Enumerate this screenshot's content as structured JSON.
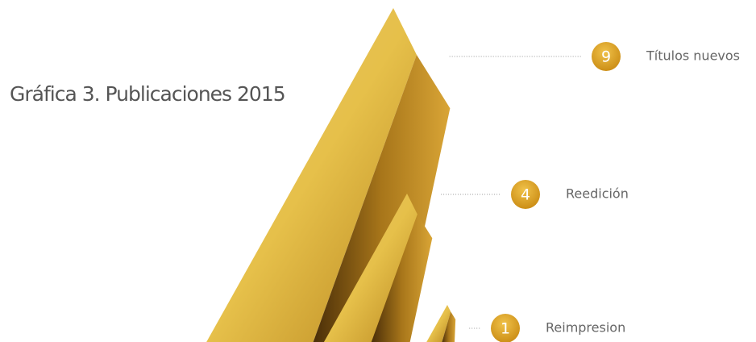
{
  "chart_data": {
    "type": "peak",
    "title": "Gráfica 3. Publicaciones 2015",
    "categories": [
      "Títulos nuevos",
      "Reedición",
      "Reimpresion"
    ],
    "values": [
      9,
      4,
      1
    ],
    "color": "#d9a536"
  }
}
